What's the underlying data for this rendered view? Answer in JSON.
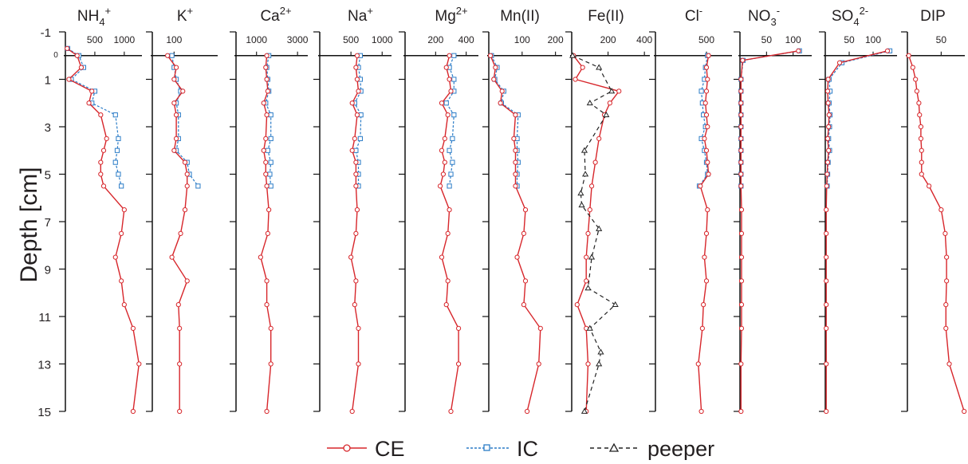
{
  "ylabel": "Depth [cm]",
  "yticks": [
    "-1",
    "1",
    "3",
    "5",
    "7",
    "9",
    "11",
    "13",
    "15"
  ],
  "colors": {
    "CE": "#d7262b",
    "IC": "#2b7cc7",
    "peeper": "#222222",
    "axis": "#111111"
  },
  "legend": {
    "ce": "CE",
    "ic": "IC",
    "peeper": "peeper"
  },
  "chart_data": [
    {
      "type": "line",
      "title_main": "NH",
      "title_sub": "4",
      "title_sup": "+",
      "xlim": [
        0,
        1300
      ],
      "xticks": [
        {
          "v": 500,
          "t": "500"
        },
        {
          "v": 1000,
          "t": "1000"
        }
      ],
      "zero_label": "0",
      "series": [
        {
          "name": "CE",
          "depth": [
            -0.3,
            0.0,
            0.5,
            1.0,
            1.5,
            2.0,
            2.5,
            3.5,
            4.0,
            4.5,
            5.0,
            5.5,
            6.5,
            7.5,
            8.5,
            9.5,
            10.5,
            11.5,
            13.0,
            15.0
          ],
          "values": [
            30,
            200,
            270,
            60,
            450,
            400,
            600,
            700,
            650,
            600,
            600,
            650,
            1000,
            950,
            850,
            950,
            1000,
            1150,
            1250,
            1150
          ]
        },
        {
          "name": "IC",
          "depth": [
            -0.3,
            0.0,
            0.5,
            1.0,
            1.5,
            2.0,
            2.5,
            3.5,
            4.0,
            4.5,
            5.0,
            5.5
          ],
          "values": [
            40,
            230,
            310,
            100,
            500,
            450,
            850,
            900,
            880,
            850,
            900,
            950
          ]
        }
      ]
    },
    {
      "type": "line",
      "title_main": "K",
      "title_sub": "",
      "title_sup": "+",
      "xlim": [
        0,
        300
      ],
      "xticks": [
        {
          "v": 100,
          "t": "100"
        }
      ],
      "zero_label": "",
      "series": [
        {
          "name": "CE",
          "depth": [
            0.0,
            0.5,
            1.0,
            1.5,
            2.0,
            2.5,
            3.5,
            4.0,
            4.5,
            5.0,
            5.5,
            6.5,
            7.5,
            8.5,
            9.5,
            10.5,
            11.5,
            13.0,
            15.0
          ],
          "values": [
            70,
            110,
            100,
            140,
            100,
            110,
            110,
            100,
            150,
            160,
            160,
            150,
            130,
            90,
            160,
            120,
            125,
            125,
            125
          ]
        },
        {
          "name": "IC",
          "depth": [
            0.0,
            0.5,
            1.0,
            1.5,
            2.0,
            2.5,
            3.5,
            4.0,
            4.5,
            5.0,
            5.5
          ],
          "values": [
            90,
            100,
            110,
            130,
            110,
            120,
            120,
            110,
            160,
            170,
            210
          ]
        }
      ]
    },
    {
      "type": "line",
      "title_main": "Ca",
      "title_sub": "",
      "title_sup": "2+",
      "xlim": [
        0,
        3500
      ],
      "xticks": [
        {
          "v": 1000,
          "t": "1000"
        },
        {
          "v": 3000,
          "t": "3000"
        }
      ],
      "zero_label": "",
      "series": [
        {
          "name": "CE",
          "depth": [
            0.0,
            0.5,
            1.0,
            1.5,
            2.0,
            2.5,
            3.5,
            4.0,
            4.5,
            5.0,
            5.5,
            6.5,
            7.5,
            8.5,
            9.5,
            10.5,
            11.5,
            13.0,
            15.0
          ],
          "values": [
            1500,
            1450,
            1500,
            1550,
            1350,
            1500,
            1450,
            1350,
            1450,
            1450,
            1500,
            1600,
            1550,
            1200,
            1500,
            1500,
            1700,
            1700,
            1500
          ]
        },
        {
          "name": "IC",
          "depth": [
            0.0,
            0.5,
            1.0,
            1.5,
            2.0,
            2.5,
            3.5,
            4.0,
            4.5,
            5.0,
            5.5
          ],
          "values": [
            1600,
            1500,
            1550,
            1600,
            1450,
            1700,
            1700,
            1550,
            1700,
            1650,
            1700
          ]
        }
      ]
    },
    {
      "type": "line",
      "title_main": "Na",
      "title_sub": "",
      "title_sup": "+",
      "xlim": [
        0,
        1150
      ],
      "xticks": [
        {
          "v": 500,
          "t": "500"
        },
        {
          "v": 1000,
          "t": "1000"
        }
      ],
      "zero_label": "",
      "series": [
        {
          "name": "CE",
          "depth": [
            0.0,
            0.5,
            1.0,
            1.5,
            2.0,
            2.5,
            3.5,
            4.0,
            4.5,
            5.0,
            5.5,
            6.5,
            7.5,
            8.5,
            9.5,
            10.5,
            11.5,
            13.0,
            15.0
          ],
          "values": [
            600,
            580,
            600,
            620,
            520,
            600,
            560,
            520,
            580,
            580,
            580,
            600,
            580,
            500,
            580,
            560,
            620,
            620,
            520
          ]
        },
        {
          "name": "IC",
          "depth": [
            0.0,
            0.5,
            1.0,
            1.5,
            2.0,
            2.5,
            3.5,
            4.0,
            4.5,
            5.0,
            5.5
          ],
          "values": [
            650,
            620,
            650,
            660,
            560,
            660,
            650,
            580,
            620,
            620,
            620
          ]
        }
      ]
    },
    {
      "type": "line",
      "title_main": "Mg",
      "title_sub": "",
      "title_sup": "2+",
      "xlim": [
        0,
        480
      ],
      "xticks": [
        {
          "v": 200,
          "t": "200"
        },
        {
          "v": 400,
          "t": "400"
        }
      ],
      "zero_label": "",
      "series": [
        {
          "name": "CE",
          "depth": [
            0.0,
            0.5,
            1.0,
            1.5,
            2.0,
            2.5,
            3.5,
            4.0,
            4.5,
            5.0,
            5.5,
            6.5,
            7.5,
            8.5,
            9.5,
            10.5,
            11.5,
            13.0,
            15.0
          ],
          "values": [
            290,
            270,
            290,
            300,
            240,
            280,
            260,
            240,
            260,
            250,
            230,
            290,
            280,
            240,
            280,
            270,
            350,
            350,
            300
          ]
        },
        {
          "name": "IC",
          "depth": [
            0.0,
            0.5,
            1.0,
            1.5,
            2.0,
            2.5,
            3.5,
            4.0,
            4.5,
            5.0,
            5.5
          ],
          "values": [
            320,
            290,
            320,
            320,
            270,
            320,
            310,
            290,
            310,
            300,
            290
          ]
        }
      ]
    },
    {
      "type": "line",
      "title_main": "Mn(II)",
      "title_sub": "",
      "title_sup": "",
      "xlim": [
        0,
        220
      ],
      "xticks": [
        {
          "v": 100,
          "t": "100"
        },
        {
          "v": 200,
          "t": "200"
        }
      ],
      "zero_label": "",
      "series": [
        {
          "name": "CE",
          "depth": [
            0.0,
            0.5,
            1.0,
            1.5,
            2.0,
            2.5,
            3.5,
            4.0,
            4.5,
            5.0,
            5.5,
            6.5,
            7.5,
            8.5,
            9.5,
            10.5,
            11.5,
            13.0,
            15.0
          ],
          "values": [
            5,
            20,
            15,
            40,
            35,
            80,
            75,
            80,
            80,
            80,
            80,
            110,
            105,
            85,
            110,
            105,
            155,
            150,
            115
          ]
        },
        {
          "name": "IC",
          "depth": [
            0.0,
            0.5,
            1.0,
            1.5,
            2.0,
            2.5,
            3.5,
            4.0,
            4.5,
            5.0,
            5.5
          ],
          "values": [
            8,
            25,
            18,
            45,
            38,
            88,
            85,
            85,
            88,
            85,
            85
          ]
        }
      ]
    },
    {
      "type": "line",
      "title_main": "Fe(II)",
      "title_sub": "",
      "title_sup": "",
      "xlim": [
        0,
        430
      ],
      "xticks": [
        {
          "v": 200,
          "t": "200"
        },
        {
          "v": 400,
          "t": "400"
        }
      ],
      "zero_label": "",
      "series": [
        {
          "name": "CE",
          "depth": [
            0.0,
            0.5,
            1.0,
            1.5,
            2.0,
            2.5,
            3.5,
            4.5,
            5.5,
            6.5,
            7.5,
            8.5,
            9.5,
            10.5,
            11.5,
            13.0,
            15.0
          ],
          "values": [
            10,
            60,
            20,
            260,
            210,
            180,
            150,
            130,
            110,
            100,
            90,
            80,
            80,
            30,
            80,
            90,
            80
          ]
        },
        {
          "name": "peeper",
          "depth": [
            0.0,
            0.5,
            1.5,
            2.0,
            2.5,
            4.0,
            5.0,
            5.8,
            6.3,
            7.3,
            8.5,
            9.8,
            10.5,
            11.5,
            12.5,
            13.0,
            15.0
          ],
          "values": [
            5,
            150,
            220,
            100,
            190,
            70,
            75,
            50,
            55,
            150,
            110,
            90,
            240,
            100,
            160,
            150,
            70
          ]
        }
      ]
    },
    {
      "type": "line",
      "title_main": "Cl",
      "title_sub": "",
      "title_sup": "-",
      "xlim": [
        0,
        750
      ],
      "xticks": [
        {
          "v": 500,
          "t": "500"
        }
      ],
      "zero_label": "",
      "series": [
        {
          "name": "CE",
          "depth": [
            0.0,
            0.5,
            1.0,
            1.5,
            2.0,
            2.5,
            3.0,
            3.5,
            4.0,
            4.5,
            5.0,
            5.5,
            6.5,
            7.5,
            8.5,
            9.5,
            10.5,
            11.5,
            13.0,
            15.0
          ],
          "values": [
            520,
            500,
            510,
            500,
            490,
            500,
            510,
            480,
            500,
            510,
            520,
            440,
            510,
            500,
            480,
            500,
            470,
            460,
            420,
            450
          ]
        },
        {
          "name": "IC",
          "depth": [
            0.0,
            0.5,
            1.0,
            1.5,
            2.0,
            2.5,
            3.0,
            3.5,
            4.0,
            4.5,
            5.0,
            5.5
          ],
          "values": [
            510,
            490,
            480,
            450,
            460,
            470,
            490,
            450,
            480,
            500,
            510,
            430
          ]
        }
      ]
    },
    {
      "type": "line",
      "title_main": "NO",
      "title_sub": "3",
      "title_sup": "-",
      "xlim": [
        0,
        135
      ],
      "xticks": [
        {
          "v": 50,
          "t": "50"
        },
        {
          "v": 100,
          "t": "100"
        }
      ],
      "zero_label": "",
      "series": [
        {
          "name": "CE",
          "depth": [
            -0.2,
            0.2,
            1.0,
            1.5,
            2.0,
            2.5,
            3.0,
            3.5,
            4.0,
            4.5,
            5.0,
            5.5,
            6.5,
            7.5,
            8.5,
            9.5,
            10.5,
            11.5,
            13.0,
            15.0
          ],
          "values": [
            110,
            5,
            2,
            2,
            2,
            2,
            2,
            2,
            2,
            2,
            2,
            2,
            3,
            3,
            3,
            3,
            3,
            3,
            2,
            2
          ]
        },
        {
          "name": "IC",
          "depth": [
            -0.2,
            0.2,
            1.0,
            1.5,
            2.0,
            2.5,
            3.0,
            3.5,
            4.0,
            4.5,
            5.0,
            5.5
          ],
          "values": [
            112,
            6,
            2,
            2,
            2,
            2,
            2,
            2,
            2,
            2,
            2,
            2
          ]
        }
      ]
    },
    {
      "type": "line",
      "title_main": "SO",
      "title_sub": "4",
      "title_sup": "2-",
      "xlim": [
        0,
        150
      ],
      "xticks": [
        {
          "v": 50,
          "t": "50"
        },
        {
          "v": 100,
          "t": "100"
        }
      ],
      "zero_label": "",
      "series": [
        {
          "name": "CE",
          "depth": [
            -0.2,
            0.3,
            1.0,
            1.5,
            2.0,
            2.5,
            3.0,
            3.5,
            4.0,
            4.5,
            5.0,
            5.5,
            6.5,
            7.5,
            8.5,
            9.5,
            10.5,
            11.5,
            13.0,
            15.0
          ],
          "values": [
            130,
            30,
            6,
            5,
            6,
            8,
            7,
            5,
            7,
            5,
            4,
            3,
            2,
            2,
            2,
            2,
            2,
            2,
            2,
            2
          ]
        },
        {
          "name": "IC",
          "depth": [
            -0.2,
            0.3,
            1.0,
            1.5,
            2.0,
            2.5,
            3.0,
            3.5,
            4.0,
            4.5,
            5.0,
            5.5
          ],
          "values": [
            135,
            35,
            8,
            10,
            8,
            10,
            9,
            7,
            9,
            6,
            5,
            4
          ]
        }
      ]
    },
    {
      "type": "line",
      "title_main": "DIP",
      "title_sub": "",
      "title_sup": "",
      "xlim": [
        0,
        85
      ],
      "xticks": [
        {
          "v": 50,
          "t": "50"
        }
      ],
      "zero_label": "",
      "series": [
        {
          "name": "CE",
          "depth": [
            0.0,
            0.5,
            1.0,
            1.5,
            2.0,
            2.5,
            3.0,
            3.5,
            4.0,
            4.5,
            5.0,
            5.5,
            6.5,
            7.5,
            8.5,
            9.5,
            10.5,
            11.5,
            13.0,
            15.0
          ],
          "values": [
            2,
            8,
            12,
            14,
            17,
            18,
            20,
            20,
            21,
            21,
            21,
            32,
            50,
            56,
            58,
            58,
            57,
            57,
            62,
            84
          ]
        }
      ]
    }
  ]
}
